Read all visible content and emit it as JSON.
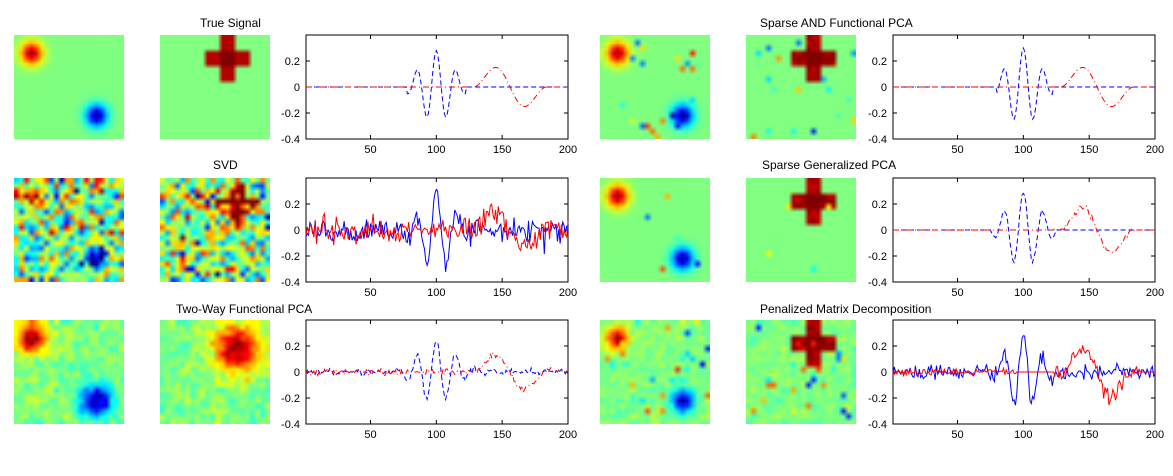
{
  "colors": {
    "red_series": "#ff0000",
    "blue_series": "#0000ff",
    "colormap": "jet",
    "axis": "#000000"
  },
  "chart_data": [
    {
      "type": "line",
      "title": "True Signal",
      "images": [
        {
          "type": "heatmap",
          "content": "2D spatial pattern: red blob top-left, blue blob bottom-right"
        },
        {
          "type": "heatmap",
          "content": "red cross near top-center"
        }
      ],
      "noise": 0,
      "x_noise": 0,
      "xlim": [
        1,
        200
      ],
      "ylim": [
        -0.4,
        0.4
      ],
      "xticks": [
        50,
        100,
        150,
        200
      ],
      "yticks": [
        0.2,
        0,
        -0.2,
        -0.4
      ],
      "series": [
        {
          "color": "blue",
          "style": "dashed",
          "wave": {
            "type": "wavelet",
            "center": 100,
            "amp": 0.28,
            "freq": 0.42,
            "width": 12,
            "start": 78,
            "end": 122
          }
        },
        {
          "color": "red",
          "style": "dashdot",
          "wave": {
            "type": "bump",
            "center": 158,
            "amp": 0.17,
            "start": 128,
            "end": 182
          }
        }
      ]
    },
    {
      "type": "line",
      "title": "SVD",
      "images": [
        {
          "type": "heatmap",
          "content": "noisy: red blob top-left, blue blob bottom-right"
        },
        {
          "type": "heatmap",
          "content": "noisy red cross"
        }
      ],
      "noise": 0.045,
      "x_noise": 0,
      "xlim": [
        1,
        200
      ],
      "ylim": [
        -0.4,
        0.4
      ],
      "xticks": [
        50,
        100,
        150,
        200
      ],
      "yticks": [
        0.2,
        0,
        -0.2,
        -0.4
      ],
      "series": [
        {
          "color": "blue",
          "style": "solid",
          "wave": {
            "type": "wavelet",
            "center": 100,
            "amp": 0.26,
            "freq": 0.42,
            "width": 14,
            "start": 1,
            "end": 200
          }
        },
        {
          "color": "red",
          "style": "solid",
          "wave": {
            "type": "bump",
            "center": 158,
            "amp": 0.17,
            "start": 1,
            "end": 200
          }
        }
      ]
    },
    {
      "type": "line",
      "title": "Two-Way Functional PCA",
      "images": [
        {
          "type": "heatmap",
          "content": "smooth: red blob top-left, blue blob bottom-right"
        },
        {
          "type": "heatmap",
          "content": "smooth red blob near top-right"
        }
      ],
      "noise": 0.012,
      "x_noise": 0,
      "xlim": [
        1,
        200
      ],
      "ylim": [
        -0.4,
        0.4
      ],
      "xticks": [
        50,
        100,
        150,
        200
      ],
      "yticks": [
        0.2,
        0,
        -0.2,
        -0.4
      ],
      "series": [
        {
          "color": "blue",
          "style": "dashed",
          "wave": {
            "type": "wavelet",
            "center": 100,
            "amp": 0.24,
            "freq": 0.42,
            "width": 13,
            "start": 1,
            "end": 200
          }
        },
        {
          "color": "red",
          "style": "dashdot",
          "wave": {
            "type": "bump",
            "center": 155,
            "amp": 0.15,
            "start": 1,
            "end": 200
          }
        }
      ]
    },
    {
      "type": "line",
      "title": "Sparse AND Functional PCA",
      "images": [
        {
          "type": "heatmap",
          "content": "red blob top-left, blue blob bottom-right, sparse speckle"
        },
        {
          "type": "heatmap",
          "content": "dark red cross near top-center"
        }
      ],
      "noise": 0,
      "x_noise": 0,
      "xlim": [
        1,
        200
      ],
      "ylim": [
        -0.4,
        0.4
      ],
      "xticks": [
        50,
        100,
        150,
        200
      ],
      "yticks": [
        0.2,
        0,
        -0.2,
        -0.4
      ],
      "series": [
        {
          "color": "blue",
          "style": "dashed",
          "wave": {
            "type": "wavelet",
            "center": 100,
            "amp": 0.3,
            "freq": 0.42,
            "width": 12,
            "start": 80,
            "end": 122
          }
        },
        {
          "color": "red",
          "style": "dashdot",
          "wave": {
            "type": "bump",
            "center": 158,
            "amp": 0.17,
            "start": 128,
            "end": 186
          }
        }
      ]
    },
    {
      "type": "line",
      "title": "Sparse Generalized PCA",
      "images": [
        {
          "type": "heatmap",
          "content": "red blob top-left, blue blob bottom-right"
        },
        {
          "type": "heatmap",
          "content": "dark red cross near top-center"
        }
      ],
      "noise": 0.01,
      "x_noise": 0,
      "xlim": [
        1,
        200
      ],
      "ylim": [
        -0.4,
        0.4
      ],
      "xticks": [
        50,
        100,
        150,
        200
      ],
      "yticks": [
        0.2,
        0,
        -0.2,
        -0.4
      ],
      "series": [
        {
          "color": "blue",
          "style": "dashed",
          "wave": {
            "type": "wavelet",
            "center": 100,
            "amp": 0.3,
            "freq": 0.42,
            "width": 12,
            "start": 76,
            "end": 124
          }
        },
        {
          "color": "red",
          "style": "dashdot",
          "wave": {
            "type": "bump",
            "center": 158,
            "amp": 0.2,
            "start": 124,
            "end": 186
          }
        }
      ]
    },
    {
      "type": "line",
      "title": "Penalized Matrix Decomposition",
      "images": [
        {
          "type": "heatmap",
          "content": "noisy: red blob top-left, blue blob bottom-right"
        },
        {
          "type": "heatmap",
          "content": "noisy dark red cross"
        }
      ],
      "noise": 0.03,
      "x_noise": 0.012,
      "xlim": [
        1,
        200
      ],
      "ylim": [
        -0.4,
        0.4
      ],
      "xticks": [
        50,
        100,
        150,
        200
      ],
      "yticks": [
        0.2,
        0,
        -0.2,
        -0.4
      ],
      "series": [
        {
          "color": "blue",
          "style": "solid",
          "wave": {
            "type": "wavelet",
            "center": 100,
            "amp": 0.3,
            "freq": 0.42,
            "width": 12,
            "start": 1,
            "end": 200
          }
        },
        {
          "color": "red",
          "style": "solid",
          "wave": {
            "type": "bump",
            "center": 158,
            "amp": 0.2,
            "start": 124,
            "end": 188
          }
        }
      ]
    }
  ]
}
